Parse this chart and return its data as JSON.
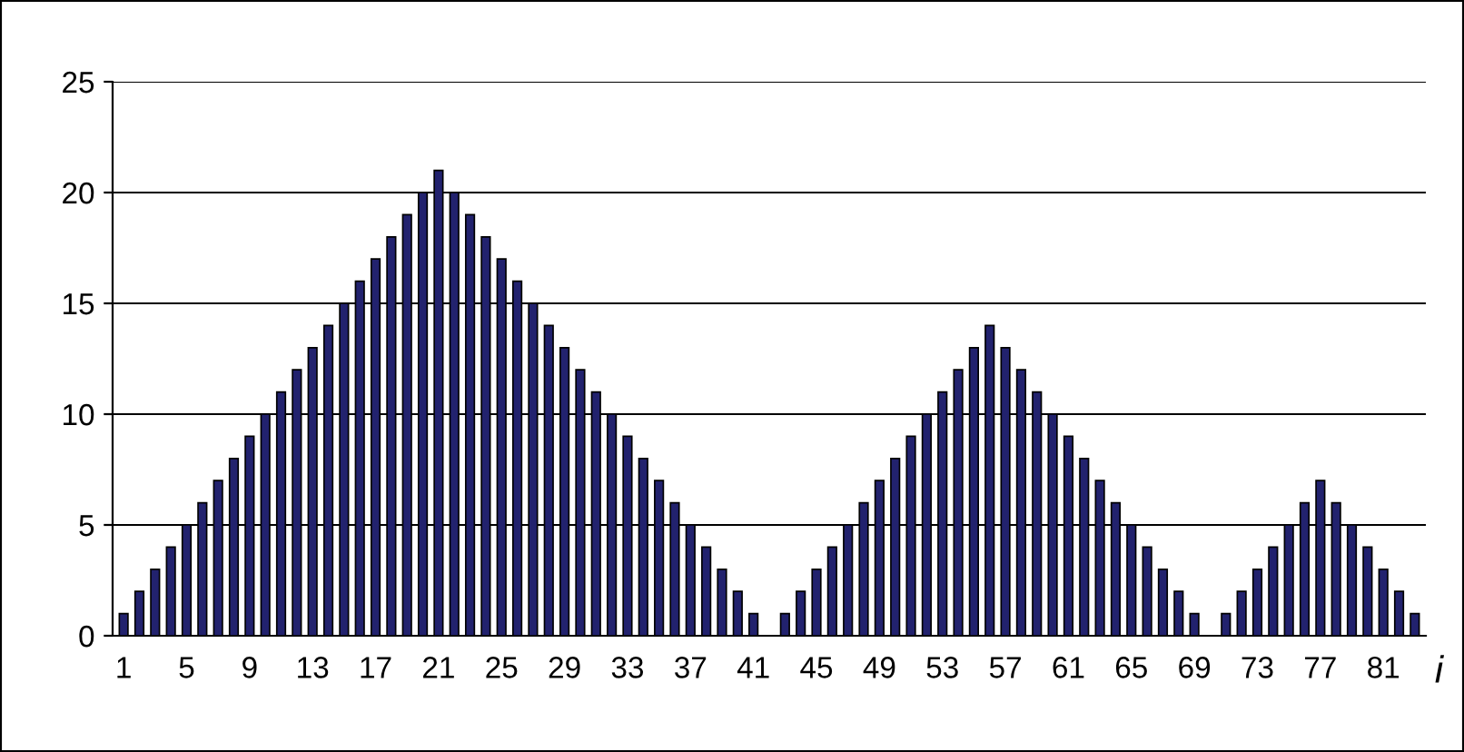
{
  "chart_data": {
    "type": "bar",
    "categories": [
      "1",
      null,
      null,
      null,
      "5",
      null,
      null,
      null,
      "9",
      null,
      null,
      null,
      "13",
      null,
      null,
      null,
      "17",
      null,
      null,
      null,
      "21",
      null,
      null,
      null,
      "25",
      null,
      null,
      null,
      "29",
      null,
      null,
      null,
      "33",
      null,
      null,
      null,
      "37",
      null,
      null,
      null,
      "41",
      null,
      null,
      null,
      "45",
      null,
      null,
      null,
      "49",
      null,
      null,
      null,
      "53",
      null,
      null,
      null,
      "57",
      null,
      null,
      null,
      "61",
      null,
      null,
      null,
      "65",
      null,
      null,
      null,
      "69",
      null,
      null,
      null,
      "73",
      null,
      null,
      null,
      "77",
      null,
      null,
      null,
      "81",
      null,
      null
    ],
    "values": [
      1,
      2,
      3,
      4,
      5,
      6,
      7,
      8,
      9,
      10,
      11,
      12,
      13,
      14,
      15,
      16,
      17,
      18,
      19,
      20,
      21,
      20,
      19,
      18,
      17,
      16,
      15,
      14,
      13,
      12,
      11,
      10,
      9,
      8,
      7,
      6,
      5,
      4,
      3,
      2,
      1,
      0,
      1,
      2,
      3,
      4,
      5,
      6,
      7,
      8,
      9,
      10,
      11,
      12,
      13,
      14,
      13,
      12,
      11,
      10,
      9,
      8,
      7,
      6,
      5,
      4,
      3,
      2,
      1,
      0,
      1,
      2,
      3,
      4,
      5,
      6,
      7,
      6,
      5,
      4,
      3,
      2,
      1
    ],
    "color": "#22226e",
    "xlabel": "i",
    "ylim": [
      0,
      25
    ],
    "yticks": [
      0,
      5,
      10,
      15,
      20,
      25
    ],
    "grid": "y"
  }
}
